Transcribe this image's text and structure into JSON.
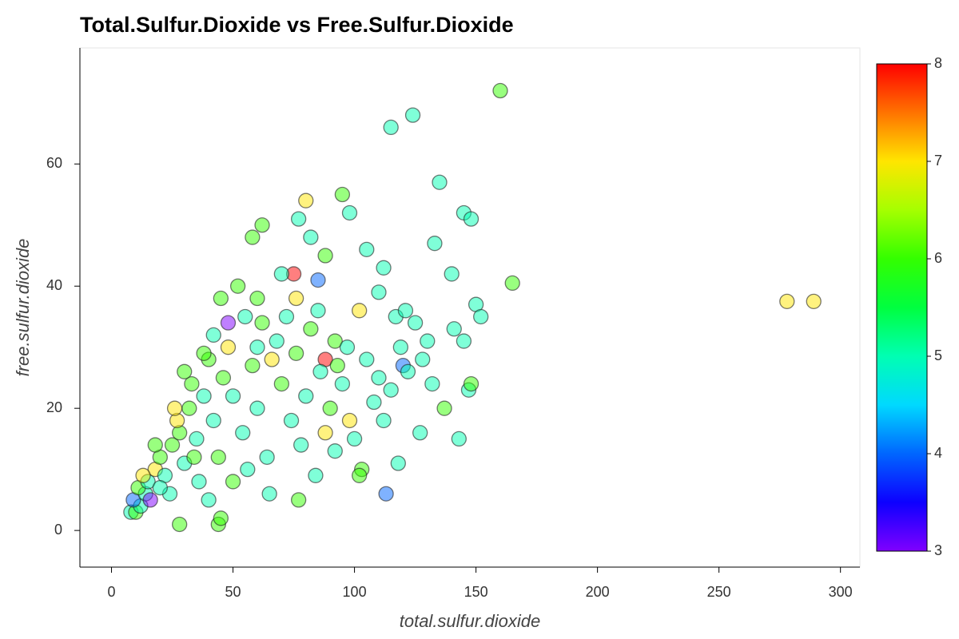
{
  "chart_data": {
    "type": "scatter",
    "title": "Total.Sulfur.Dioxide vs Free.Sulfur.Dioxide",
    "x_label": "total.sulfur.dioxide",
    "y_label": "free.sulfur.dioxide",
    "x": [
      278,
      289,
      160,
      124,
      115,
      165,
      135,
      95,
      80,
      145,
      148,
      98,
      62,
      77,
      82,
      58,
      88,
      105,
      112,
      133,
      140,
      85,
      75,
      76,
      102,
      98,
      113,
      120,
      77,
      44,
      28,
      45,
      128,
      147,
      143,
      150,
      152,
      137,
      141,
      130,
      118,
      127,
      122,
      92,
      88,
      48,
      48,
      60,
      8,
      10,
      12,
      9,
      14,
      11,
      16,
      15,
      18,
      20,
      22,
      25,
      24,
      28,
      30,
      32,
      27,
      35,
      33,
      38,
      36,
      40,
      42,
      44,
      46,
      45,
      50,
      52,
      55,
      54,
      58,
      56,
      60,
      62,
      64,
      66,
      68,
      70,
      72,
      74,
      76,
      78,
      80,
      82,
      84,
      86,
      88,
      90,
      92,
      95,
      97,
      100,
      103,
      105,
      108,
      110,
      112,
      115,
      117,
      119,
      121,
      125,
      132,
      145,
      42,
      38,
      30,
      26,
      34,
      20,
      18,
      13,
      50,
      40,
      65,
      60,
      70,
      102,
      85,
      110,
      148,
      93
    ],
    "values": [
      37.5,
      37.5,
      72,
      68,
      66,
      40.5,
      57,
      55,
      54,
      52,
      51,
      52,
      50,
      51,
      48,
      48,
      45,
      46,
      43,
      47,
      42,
      41,
      42,
      38,
      36,
      18,
      6,
      27,
      5,
      1,
      1,
      2,
      28,
      23,
      15,
      37,
      35,
      20,
      33,
      31,
      11,
      16,
      26,
      31,
      28,
      34,
      30,
      30,
      3,
      3,
      4,
      5,
      6,
      7,
      5,
      8,
      10,
      12,
      9,
      14,
      6,
      16,
      11,
      20,
      18,
      15,
      24,
      22,
      8,
      28,
      18,
      12,
      25,
      38,
      22,
      40,
      35,
      16,
      27,
      10,
      20,
      34,
      12,
      28,
      31,
      24,
      35,
      18,
      29,
      14,
      22,
      33,
      9,
      26,
      16,
      20,
      13,
      24,
      30,
      15,
      10,
      28,
      21,
      39,
      18,
      23,
      35,
      30,
      36,
      34,
      24,
      31,
      32,
      29,
      26,
      20,
      12,
      7,
      14,
      9,
      8,
      5,
      6,
      38,
      42,
      9,
      36,
      25,
      24,
      27
    ],
    "color_values": [
      7,
      7,
      6,
      5,
      5,
      6,
      5,
      6,
      7,
      5,
      5,
      5,
      6,
      5,
      5,
      6,
      6,
      5,
      5,
      5,
      5,
      4,
      8,
      7,
      7,
      7,
      4,
      4,
      6,
      6,
      6,
      6,
      5,
      5,
      5,
      5,
      5,
      6,
      5,
      5,
      5,
      5,
      5,
      6,
      8,
      3,
      7,
      5,
      5,
      6,
      5,
      4,
      5,
      6,
      3,
      5,
      7,
      6,
      5,
      6,
      5,
      6,
      5,
      6,
      7,
      5,
      6,
      5,
      5,
      6,
      5,
      6,
      6,
      6,
      5,
      6,
      5,
      5,
      6,
      5,
      5,
      6,
      5,
      7,
      5,
      6,
      5,
      5,
      6,
      5,
      5,
      6,
      5,
      5,
      7,
      6,
      5,
      5,
      5,
      5,
      6,
      5,
      5,
      5,
      5,
      5,
      5,
      5,
      5,
      5,
      5,
      5,
      5,
      6,
      6,
      7,
      6,
      5,
      6,
      7,
      6,
      5,
      5,
      6,
      5,
      6,
      5,
      5,
      6,
      6
    ],
    "colormap": "rainbow",
    "clim": [
      3,
      8
    ],
    "cticks": [
      3,
      4,
      5,
      6,
      7,
      8
    ],
    "xlim": [
      -13,
      308
    ],
    "xticks": [
      0,
      50,
      100,
      150,
      200,
      250,
      300
    ],
    "ylim": [
      -6,
      79
    ],
    "yticks": [
      0,
      20,
      40,
      60
    ]
  }
}
